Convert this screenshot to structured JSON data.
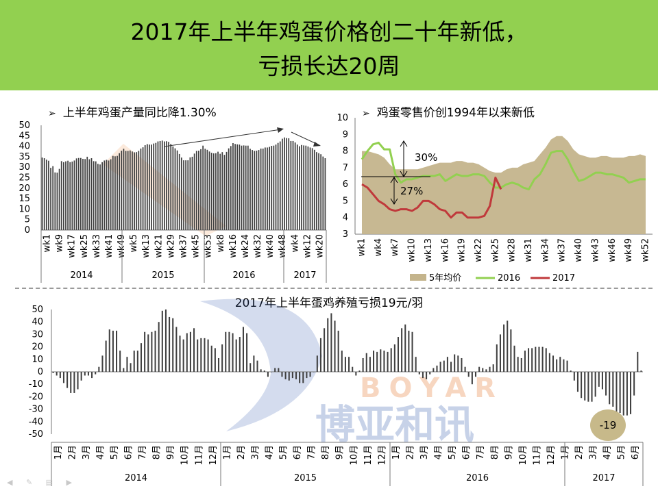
{
  "slide": {
    "title_line1": "2017年上半年鸡蛋价格创二十年新低，",
    "title_line2": "亏损长达20周",
    "watermark_letters": "BOYAR",
    "watermark_cn": "博亚和讯",
    "colors": {
      "header": "#92d050",
      "bar": "#404040",
      "area": "#c4b48c",
      "line2016": "#92d050",
      "line2017": "#c0393b",
      "bubble": "#c7b98a"
    }
  },
  "chart_data": [
    {
      "type": "bar",
      "title": "上半年鸡蛋产量同比降1.30%",
      "ylim": [
        0,
        50
      ],
      "yticks": [
        "0",
        "5",
        "10",
        "15",
        "20",
        "25",
        "30",
        "35",
        "40",
        "45",
        "50"
      ],
      "xtick_labels": [
        "wk1",
        "wk9",
        "wk17",
        "wk25",
        "wk33",
        "wk41",
        "wk49",
        "wk5",
        "wk13",
        "wk21",
        "wk29",
        "wk37",
        "wk45",
        "wk53",
        "wk8",
        "wk16",
        "wk24",
        "wk32",
        "wk40",
        "wk48",
        "wk4",
        "wk12",
        "wk20"
      ],
      "year_labels": [
        "2014",
        "2015",
        "2016",
        "2017"
      ],
      "values": [
        34.6,
        34.3,
        33.6,
        33.1,
        29.7,
        30.5,
        27.5,
        27.4,
        29.2,
        32.9,
        32.4,
        32.8,
        33.1,
        32.4,
        32.7,
        33.2,
        34.2,
        34.4,
        34.4,
        34.0,
        33.9,
        35.0,
        33.8,
        34.3,
        32.9,
        32.8,
        31.6,
        31.3,
        32.4,
        33.2,
        33.5,
        33.2,
        33.8,
        35.4,
        35.2,
        35.4,
        36.7,
        37.9,
        38.8,
        37.8,
        37.8,
        38.0,
        37.5,
        37.1,
        37.2,
        37.8,
        38.9,
        39.5,
        40.5,
        41.0,
        40.8,
        40.8,
        41.3,
        41.6,
        42.3,
        42.5,
        42.7,
        42.3,
        42.4,
        42.1,
        41.1,
        39.9,
        39.0,
        38.0,
        36.3,
        34.6,
        33.3,
        33.3,
        33.3,
        34.7,
        35.0,
        36.5,
        37.8,
        37.9,
        38.6,
        40.3,
        38.8,
        38.3,
        37.5,
        36.9,
        36.6,
        36.7,
        37.4,
        36.4,
        37.2,
        35.9,
        37.3,
        39.0,
        40.1,
        41.5,
        41.1,
        40.9,
        40.8,
        40.3,
        40.4,
        40.3,
        40.3,
        38.8,
        38.2,
        37.8,
        37.9,
        38.2,
        38.9,
        38.9,
        39.4,
        39.4,
        39.7,
        40.2,
        40.3,
        40.8,
        41.6,
        42.3,
        43.6,
        44.2,
        43.9,
        43.8,
        42.5,
        42.5,
        41.8,
        40.8,
        40.0,
        40.6,
        40.4,
        40.3,
        39.9,
        39.4,
        39.1,
        38.3,
        37.2,
        36.7,
        36.2,
        35.1,
        34.3
      ],
      "annotations": [
        "arrow-up-2015-2016",
        "arrow-down-2017"
      ]
    },
    {
      "type": "line",
      "title": "鸡蛋零售价创1994年以来新低",
      "ylim": [
        3,
        10
      ],
      "yticks": [
        "3",
        "4",
        "5",
        "6",
        "7",
        "8",
        "9",
        "10"
      ],
      "xtick_labels": [
        "wk1",
        "wk4",
        "wk7",
        "wk10",
        "wk13",
        "wk16",
        "wk19",
        "wk22",
        "wk25",
        "wk28",
        "wk31",
        "wk34",
        "wk37",
        "wk40",
        "wk43",
        "wk46",
        "wk49",
        "wk52"
      ],
      "series": [
        {
          "name": "5年均价",
          "type": "area",
          "values": [
            8.0,
            8.0,
            7.9,
            7.8,
            7.6,
            7.2,
            6.9,
            6.9,
            6.9,
            6.9,
            6.9,
            7.0,
            7.1,
            7.2,
            7.3,
            7.3,
            7.3,
            7.4,
            7.4,
            7.3,
            7.3,
            7.2,
            7.0,
            6.8,
            6.7,
            6.7,
            6.9,
            7.0,
            7.0,
            7.2,
            7.3,
            7.4,
            7.8,
            8.2,
            8.7,
            8.9,
            8.9,
            8.6,
            8.1,
            7.8,
            7.7,
            7.6,
            7.6,
            7.7,
            7.7,
            7.6,
            7.6,
            7.6,
            7.7,
            7.7,
            7.8,
            7.7
          ]
        },
        {
          "name": "2016",
          "type": "line",
          "values": [
            7.5,
            8.0,
            8.4,
            8.5,
            8.1,
            8.1,
            6.6,
            6.1,
            6.3,
            6.3,
            6.4,
            6.5,
            6.5,
            6.5,
            6.6,
            6.2,
            6.4,
            6.6,
            6.5,
            6.5,
            6.6,
            6.6,
            6.5,
            6.1,
            5.8,
            5.8,
            6.0,
            6.1,
            6.0,
            5.8,
            5.7,
            6.3,
            6.6,
            7.2,
            7.9,
            8.0,
            8.0,
            7.5,
            6.8,
            6.2,
            6.3,
            6.5,
            6.7,
            6.7,
            6.6,
            6.6,
            6.5,
            6.4,
            6.1,
            6.2,
            6.3,
            6.3
          ]
        },
        {
          "name": "2017",
          "type": "line",
          "values": [
            6.0,
            5.8,
            5.4,
            5.0,
            4.8,
            4.5,
            4.4,
            4.5,
            4.5,
            4.4,
            4.6,
            5.0,
            5.0,
            4.8,
            4.5,
            4.4,
            4.0,
            4.3,
            4.3,
            4.0,
            4.0,
            4.0,
            4.1,
            4.7,
            6.4,
            5.7
          ]
        }
      ],
      "annotations": [
        {
          "text": "30%"
        },
        {
          "text": "27%"
        }
      ]
    },
    {
      "type": "bar",
      "title": "2017年上半年蛋鸡养殖亏损19元/羽",
      "ylim": [
        -50,
        50
      ],
      "yticks": [
        "-50",
        "-40",
        "-30",
        "-20",
        "-10",
        "0",
        "10",
        "20",
        "30",
        "40",
        "50"
      ],
      "month_labels": [
        "1月",
        "2月",
        "3月",
        "4月",
        "5月",
        "6月",
        "7月",
        "8月",
        "9月",
        "10月",
        "11月",
        "12月",
        "1月",
        "2月",
        "3月",
        "4月",
        "5月",
        "6月",
        "7月",
        "8月",
        "9月",
        "10月",
        "11月",
        "12月",
        "1月",
        "2月",
        "3月",
        "4月",
        "5月",
        "6月",
        "7月",
        "8月",
        "9月",
        "10月",
        "11月",
        "12月",
        "1月",
        "2月",
        "3月",
        "4月",
        "5月",
        "6月"
      ],
      "year_labels": [
        "2014",
        "2015",
        "2016",
        "2017"
      ],
      "values": [
        -1,
        -3,
        -5,
        -9,
        -13,
        -17,
        -17,
        -14,
        -7,
        -3,
        -3,
        -5,
        -2,
        4,
        13,
        25,
        34,
        33,
        33,
        17,
        3,
        12,
        7,
        17,
        17,
        23,
        32,
        30,
        32,
        33,
        40,
        49,
        50,
        44,
        43,
        36,
        29,
        26,
        31,
        32,
        35,
        26,
        27,
        27,
        26,
        21,
        19,
        11,
        22,
        32,
        32,
        31,
        26,
        28,
        36,
        31,
        7,
        13,
        9,
        2,
        1,
        -4,
        0,
        3,
        3,
        -4,
        -6,
        -7,
        -5,
        -6,
        -9,
        -9,
        -5,
        -4,
        0,
        13,
        27,
        35,
        43,
        47,
        41,
        33,
        17,
        12,
        12,
        4,
        -3,
        1,
        11,
        15,
        12,
        17,
        16,
        18,
        17,
        16,
        19,
        22,
        28,
        35,
        38,
        33,
        32,
        12,
        -2,
        -5,
        -6,
        -2,
        3,
        5,
        8,
        9,
        12,
        8,
        14,
        13,
        11,
        4,
        -4,
        -10,
        -4,
        4,
        3,
        2,
        4,
        6,
        22,
        30,
        38,
        41,
        34,
        21,
        12,
        11,
        17,
        19,
        19,
        20,
        20,
        20,
        19,
        15,
        13,
        10,
        12,
        10,
        9,
        1,
        -7,
        -16,
        -21,
        -23,
        -24,
        -24,
        -20,
        -12,
        -14,
        -19,
        -26,
        -28,
        -32,
        -33,
        -35,
        -35,
        -34,
        -19,
        16,
        1
      ]
    }
  ],
  "loss_bubble": {
    "value": "-19"
  }
}
